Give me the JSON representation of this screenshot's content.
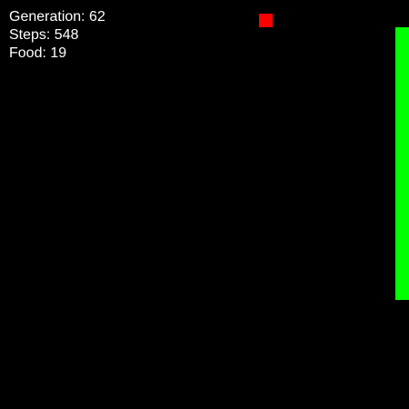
{
  "hud": {
    "generation": "Generation: 62",
    "steps": "Steps: 548",
    "food": "Food: 19"
  },
  "colors": {
    "background": "#000000",
    "text": "#ffffff",
    "snake": "#00ff00",
    "food": "#ff0000"
  }
}
